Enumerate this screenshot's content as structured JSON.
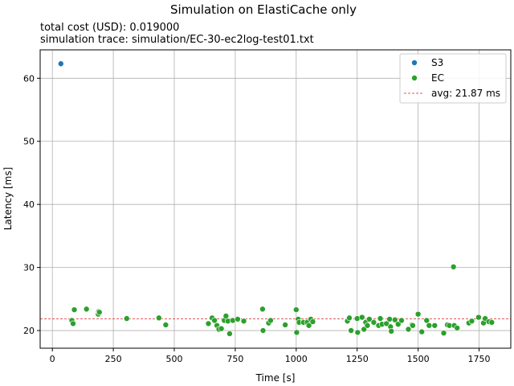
{
  "chart_data": {
    "type": "scatter",
    "title": "Simulation on ElastiCache only",
    "subtitle_lines": [
      "total cost (USD):  0.019000",
      "simulation trace:  simulation/EC-30-ec2log-test01.txt"
    ],
    "xlabel": "Time [s]",
    "ylabel": "Latency [ms]",
    "xlim": [
      -50,
      1880
    ],
    "ylim": [
      17.2,
      64.5
    ],
    "xticks": [
      0,
      250,
      500,
      750,
      1000,
      1250,
      1500,
      1750
    ],
    "yticks": [
      20,
      30,
      40,
      50,
      60
    ],
    "grid": true,
    "legend_position": "top-right",
    "series": [
      {
        "name": "S3",
        "kind": "scatter",
        "color": "#1f77b4",
        "points": [
          [
            35,
            62.3
          ]
        ]
      },
      {
        "name": "EC",
        "kind": "scatter",
        "color": "#2ca02c",
        "points": [
          [
            80,
            21.6
          ],
          [
            85,
            21.1
          ],
          [
            90,
            23.3
          ],
          [
            140,
            23.4
          ],
          [
            188,
            22.6
          ],
          [
            190,
            23.0
          ],
          [
            193,
            22.9
          ],
          [
            305,
            21.9
          ],
          [
            437,
            22.0
          ],
          [
            465,
            20.9
          ],
          [
            640,
            21.1
          ],
          [
            655,
            22.0
          ],
          [
            665,
            21.6
          ],
          [
            675,
            20.8
          ],
          [
            683,
            20.2
          ],
          [
            693,
            20.3
          ],
          [
            705,
            21.6
          ],
          [
            712,
            22.3
          ],
          [
            720,
            21.5
          ],
          [
            727,
            19.5
          ],
          [
            740,
            21.6
          ],
          [
            760,
            21.8
          ],
          [
            785,
            21.5
          ],
          [
            862,
            23.4
          ],
          [
            864,
            20.0
          ],
          [
            887,
            21.2
          ],
          [
            895,
            21.6
          ],
          [
            955,
            20.9
          ],
          [
            1000,
            23.3
          ],
          [
            1002,
            19.7
          ],
          [
            1008,
            21.8
          ],
          [
            1012,
            21.3
          ],
          [
            1030,
            21.3
          ],
          [
            1045,
            21.3
          ],
          [
            1052,
            20.8
          ],
          [
            1060,
            21.8
          ],
          [
            1068,
            21.4
          ],
          [
            1210,
            21.5
          ],
          [
            1218,
            22.0
          ],
          [
            1225,
            20.0
          ],
          [
            1250,
            21.9
          ],
          [
            1252,
            19.7
          ],
          [
            1270,
            22.1
          ],
          [
            1278,
            20.2
          ],
          [
            1285,
            21.3
          ],
          [
            1292,
            20.8
          ],
          [
            1300,
            21.8
          ],
          [
            1318,
            21.3
          ],
          [
            1338,
            20.8
          ],
          [
            1345,
            21.9
          ],
          [
            1352,
            21.0
          ],
          [
            1370,
            21.1
          ],
          [
            1383,
            21.8
          ],
          [
            1387,
            20.6
          ],
          [
            1390,
            19.9
          ],
          [
            1405,
            21.7
          ],
          [
            1418,
            21.0
          ],
          [
            1432,
            21.6
          ],
          [
            1460,
            20.2
          ],
          [
            1475,
            20.9
          ],
          [
            1478,
            20.8
          ],
          [
            1500,
            22.6
          ],
          [
            1515,
            19.8
          ],
          [
            1535,
            21.6
          ],
          [
            1545,
            20.8
          ],
          [
            1568,
            20.8
          ],
          [
            1605,
            19.6
          ],
          [
            1620,
            20.9
          ],
          [
            1628,
            20.8
          ],
          [
            1645,
            30.1
          ],
          [
            1648,
            20.8
          ],
          [
            1660,
            20.4
          ],
          [
            1708,
            21.2
          ],
          [
            1720,
            21.5
          ],
          [
            1748,
            22.1
          ],
          [
            1768,
            21.2
          ],
          [
            1775,
            21.9
          ],
          [
            1790,
            21.4
          ],
          [
            1802,
            21.3
          ]
        ]
      },
      {
        "name": "avg: 21.87 ms",
        "kind": "hline",
        "color": "#d62728",
        "y": 21.87
      }
    ]
  }
}
